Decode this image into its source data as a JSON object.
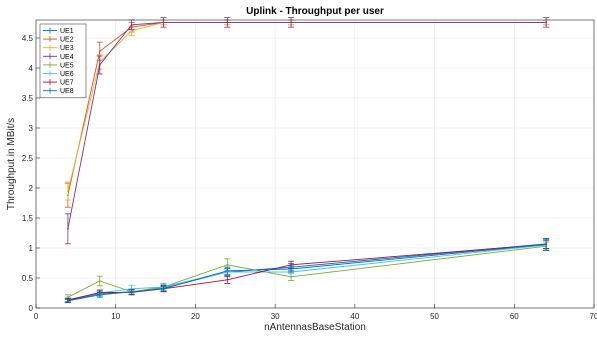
{
  "chart_data": {
    "type": "line",
    "title": "Uplink - Throughput per user",
    "xlabel": "nAntennasBaseStation",
    "ylabel": "Throughput in MBit/s",
    "xlim": [
      0,
      70
    ],
    "ylim": [
      0,
      4.8
    ],
    "x_ticks": [
      0,
      10,
      20,
      30,
      40,
      50,
      60,
      70
    ],
    "y_ticks": [
      0,
      0.5,
      1,
      1.5,
      2,
      2.5,
      3,
      3.5,
      4,
      4.5
    ],
    "x_tick_labels": [
      "0",
      "10",
      "20",
      "30",
      "40",
      "50",
      "60",
      "70"
    ],
    "y_tick_labels": [
      "0",
      "0.5",
      "1",
      "1.5",
      "2",
      "2.5",
      "3",
      "3.5",
      "4",
      "4.5"
    ],
    "grid": true,
    "legend_position": "top-left",
    "error_bars": true,
    "x": [
      4,
      8,
      12,
      16,
      24,
      32,
      64
    ],
    "series": [
      {
        "name": "UE1",
        "color": "#0072bd",
        "values": [
          0.12,
          0.24,
          0.27,
          0.33,
          0.6,
          0.68,
          1.07
        ],
        "err": [
          0.03,
          0.04,
          0.04,
          0.05,
          0.06,
          0.06,
          0.08
        ]
      },
      {
        "name": "UE2",
        "color": "#d95319",
        "values": [
          1.88,
          4.28,
          4.68,
          4.76,
          4.76,
          4.76,
          4.76
        ],
        "err": [
          0.2,
          0.15,
          0.08,
          0.04,
          0.04,
          0.04,
          0.04
        ]
      },
      {
        "name": "UE3",
        "color": "#edb120",
        "values": [
          1.95,
          4.1,
          4.62,
          4.76,
          4.76,
          4.76,
          4.76
        ],
        "err": [
          0.15,
          0.12,
          0.08,
          0.04,
          0.04,
          0.04,
          0.04
        ]
      },
      {
        "name": "UE4",
        "color": "#7e2f8e",
        "values": [
          1.32,
          4.05,
          4.72,
          4.76,
          4.76,
          4.76,
          4.76
        ],
        "err": [
          0.25,
          0.15,
          0.08,
          0.08,
          0.08,
          0.08,
          0.08
        ]
      },
      {
        "name": "UE5",
        "color": "#77ac30",
        "values": [
          0.18,
          0.45,
          0.27,
          0.35,
          0.72,
          0.52,
          1.03
        ],
        "err": [
          0.04,
          0.08,
          0.05,
          0.05,
          0.1,
          0.06,
          0.07
        ]
      },
      {
        "name": "UE6",
        "color": "#4dbeee",
        "values": [
          0.14,
          0.25,
          0.32,
          0.35,
          0.6,
          0.6,
          1.05
        ],
        "err": [
          0.03,
          0.05,
          0.06,
          0.06,
          0.08,
          0.07,
          0.08
        ]
      },
      {
        "name": "UE7",
        "color": "#a2142f",
        "values": [
          0.13,
          0.26,
          0.26,
          0.32,
          0.47,
          0.72,
          1.06
        ],
        "err": [
          0.03,
          0.04,
          0.04,
          0.05,
          0.06,
          0.06,
          0.07
        ]
      },
      {
        "name": "UE8",
        "color": "#0072bd",
        "values": [
          0.12,
          0.22,
          0.27,
          0.32,
          0.62,
          0.65,
          1.06
        ],
        "err": [
          0.03,
          0.04,
          0.04,
          0.04,
          0.06,
          0.05,
          0.1
        ]
      }
    ]
  }
}
